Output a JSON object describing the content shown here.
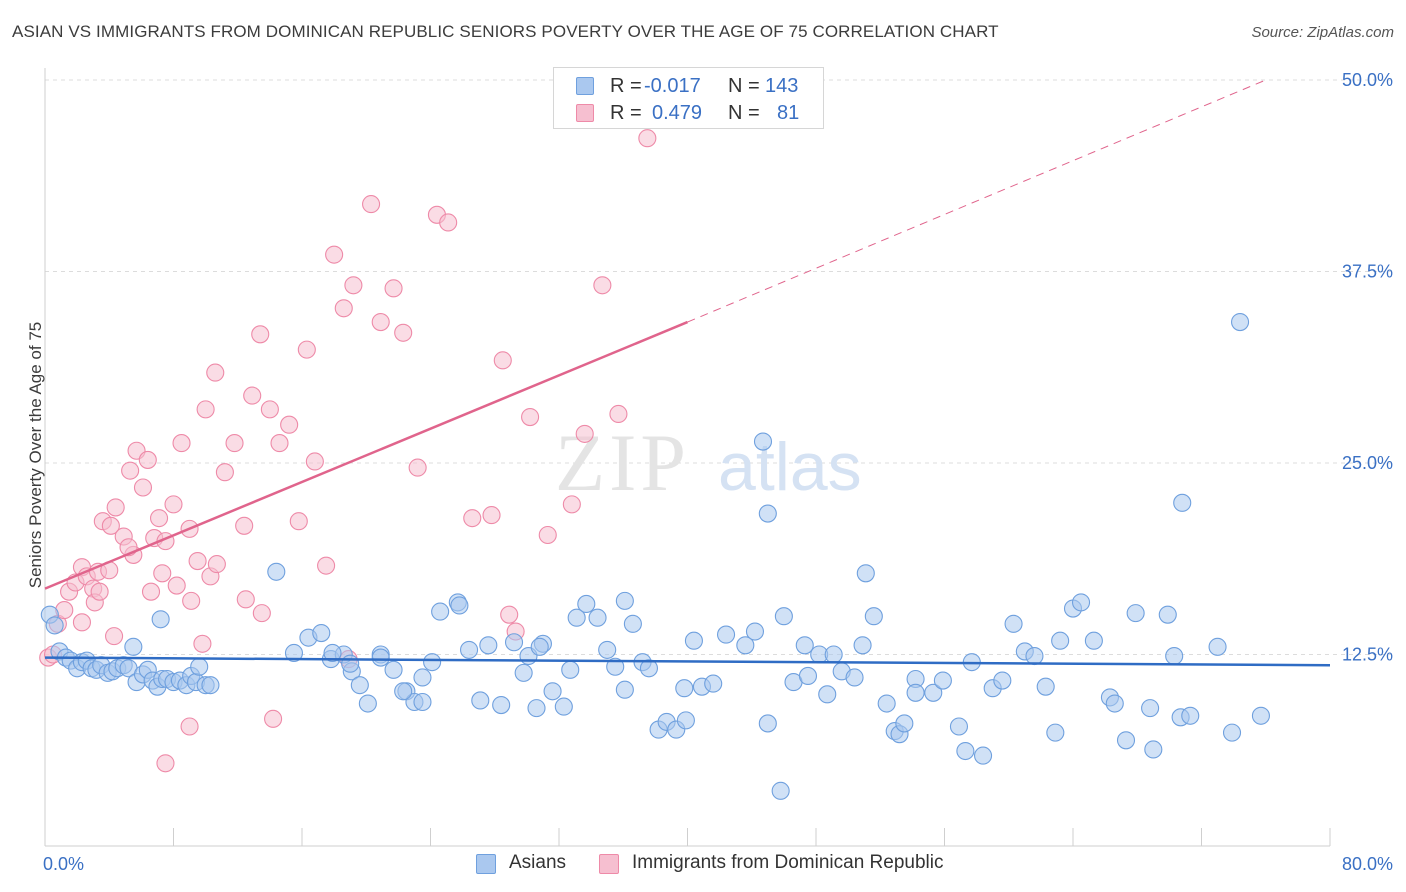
{
  "title": "ASIAN VS IMMIGRANTS FROM DOMINICAN REPUBLIC SENIORS POVERTY OVER THE AGE OF 75 CORRELATION CHART",
  "source": "Source: ZipAtlas.com",
  "watermark": {
    "part1": "ZIP",
    "part2": "atlas"
  },
  "legend_top": {
    "rows": [
      {
        "r_label": "R =",
        "r_value": "-0.017",
        "n_label": "N =",
        "n_value": "143",
        "color": "#6fa0de"
      },
      {
        "r_label": "R =",
        "r_value": "0.479",
        "n_label": "N =",
        "n_value": "81",
        "color": "#ee8aa8"
      }
    ]
  },
  "legend_bottom": [
    {
      "label": "Asians",
      "color": "#6fa0de"
    },
    {
      "label": "Immigrants from Dominican Republic",
      "color": "#ee8aa8"
    }
  ],
  "colors": {
    "blue_fill": "#aac8ef",
    "blue_stroke": "#6fa0de",
    "blue_line": "#2f6cc4",
    "pink_fill": "#f6bfd0",
    "pink_stroke": "#ee8aa8",
    "pink_line": "#e0648c",
    "tick_label": "#3a70c4",
    "grid": "#dcdcdc"
  },
  "chart_data": {
    "type": "scatter",
    "title": "ASIAN VS IMMIGRANTS FROM DOMINICAN REPUBLIC SENIORS POVERTY OVER THE AGE OF 75 CORRELATION CHART",
    "xlabel": "",
    "ylabel": "Seniors Poverty Over the Age of 75",
    "xlim": [
      0,
      80
    ],
    "ylim": [
      0,
      50
    ],
    "x_tick_labels": [
      "0.0%",
      "80.0%"
    ],
    "y_ticks": [
      12.5,
      25.0,
      37.5,
      50.0
    ],
    "y_tick_labels": [
      "12.5%",
      "25.0%",
      "37.5%",
      "50.0%"
    ],
    "grid": true,
    "legend_position": "top-center",
    "series": [
      {
        "name": "Asians",
        "r": -0.017,
        "n": 143,
        "trend": {
          "x": [
            0,
            80
          ],
          "y": [
            12.3,
            11.8
          ]
        },
        "points": [
          [
            0.3,
            15.1
          ],
          [
            0.6,
            14.4
          ],
          [
            0.9,
            12.7
          ],
          [
            1.3,
            12.3
          ],
          [
            1.6,
            12.1
          ],
          [
            2.0,
            11.6
          ],
          [
            2.3,
            12.0
          ],
          [
            2.6,
            12.1
          ],
          [
            2.9,
            11.6
          ],
          [
            3.2,
            11.5
          ],
          [
            3.5,
            11.8
          ],
          [
            3.9,
            11.3
          ],
          [
            4.2,
            11.4
          ],
          [
            4.5,
            11.6
          ],
          [
            4.9,
            11.8
          ],
          [
            5.2,
            11.6
          ],
          [
            5.5,
            13.0
          ],
          [
            5.7,
            10.7
          ],
          [
            6.1,
            11.2
          ],
          [
            6.4,
            11.5
          ],
          [
            6.7,
            10.8
          ],
          [
            7.0,
            10.4
          ],
          [
            7.3,
            10.9
          ],
          [
            7.6,
            10.9
          ],
          [
            8.0,
            10.7
          ],
          [
            8.4,
            10.8
          ],
          [
            8.8,
            10.5
          ],
          [
            9.1,
            11.1
          ],
          [
            9.4,
            10.7
          ],
          [
            9.6,
            11.7
          ],
          [
            10.0,
            10.5
          ],
          [
            10.3,
            10.5
          ],
          [
            7.2,
            14.8
          ],
          [
            14.4,
            17.9
          ],
          [
            15.5,
            12.6
          ],
          [
            16.4,
            13.6
          ],
          [
            17.2,
            13.9
          ],
          [
            17.8,
            12.2
          ],
          [
            18.6,
            12.5
          ],
          [
            19.1,
            11.4
          ],
          [
            19.6,
            10.5
          ],
          [
            20.1,
            9.3
          ],
          [
            20.9,
            12.5
          ],
          [
            21.7,
            11.5
          ],
          [
            22.5,
            10.1
          ],
          [
            23.0,
            9.4
          ],
          [
            23.5,
            9.4
          ],
          [
            24.1,
            12.0
          ],
          [
            24.6,
            15.3
          ],
          [
            25.7,
            15.9
          ],
          [
            26.4,
            12.8
          ],
          [
            27.1,
            9.5
          ],
          [
            27.6,
            13.1
          ],
          [
            28.4,
            9.2
          ],
          [
            29.2,
            13.3
          ],
          [
            29.8,
            11.3
          ],
          [
            30.1,
            12.4
          ],
          [
            30.6,
            9.0
          ],
          [
            31.0,
            13.2
          ],
          [
            31.6,
            10.1
          ],
          [
            32.3,
            9.1
          ],
          [
            32.7,
            11.5
          ],
          [
            33.1,
            14.9
          ],
          [
            33.7,
            15.8
          ],
          [
            34.4,
            14.9
          ],
          [
            35.0,
            12.8
          ],
          [
            35.5,
            11.7
          ],
          [
            36.1,
            10.2
          ],
          [
            36.6,
            14.5
          ],
          [
            37.2,
            12.0
          ],
          [
            37.6,
            11.6
          ],
          [
            38.2,
            7.6
          ],
          [
            38.7,
            8.1
          ],
          [
            39.3,
            7.6
          ],
          [
            39.8,
            10.3
          ],
          [
            40.4,
            13.4
          ],
          [
            40.9,
            10.4
          ],
          [
            41.6,
            10.6
          ],
          [
            42.4,
            13.8
          ],
          [
            43.6,
            13.1
          ],
          [
            44.2,
            14.0
          ],
          [
            45.0,
            8.0
          ],
          [
            45.8,
            3.6
          ],
          [
            46.0,
            15.0
          ],
          [
            46.6,
            10.7
          ],
          [
            47.3,
            13.1
          ],
          [
            48.2,
            12.5
          ],
          [
            49.1,
            12.5
          ],
          [
            49.6,
            11.4
          ],
          [
            50.4,
            11.0
          ],
          [
            51.6,
            15.0
          ],
          [
            52.4,
            9.3
          ],
          [
            52.9,
            7.5
          ],
          [
            53.2,
            7.3
          ],
          [
            54.2,
            10.9
          ],
          [
            55.3,
            10.0
          ],
          [
            55.9,
            10.8
          ],
          [
            56.9,
            7.8
          ],
          [
            57.7,
            12.0
          ],
          [
            57.3,
            6.2
          ],
          [
            58.4,
            5.9
          ],
          [
            59.0,
            10.3
          ],
          [
            59.6,
            10.8
          ],
          [
            60.3,
            14.5
          ],
          [
            61.0,
            12.7
          ],
          [
            61.6,
            12.4
          ],
          [
            62.3,
            10.4
          ],
          [
            62.9,
            7.4
          ],
          [
            63.2,
            13.4
          ],
          [
            64.0,
            15.5
          ],
          [
            64.5,
            15.9
          ],
          [
            65.3,
            13.4
          ],
          [
            66.3,
            9.7
          ],
          [
            66.6,
            9.3
          ],
          [
            67.3,
            6.9
          ],
          [
            67.9,
            15.2
          ],
          [
            68.8,
            9.0
          ],
          [
            69.0,
            6.3
          ],
          [
            69.9,
            15.1
          ],
          [
            70.3,
            12.4
          ],
          [
            70.7,
            8.4
          ],
          [
            71.3,
            8.5
          ],
          [
            73.9,
            7.4
          ],
          [
            75.7,
            8.5
          ],
          [
            73.0,
            13.0
          ],
          [
            70.8,
            22.4
          ],
          [
            74.4,
            34.2
          ],
          [
            44.7,
            26.4
          ],
          [
            45.0,
            21.7
          ],
          [
            50.9,
            13.1
          ],
          [
            51.1,
            17.8
          ],
          [
            53.5,
            8.0
          ],
          [
            54.2,
            10.0
          ],
          [
            47.5,
            11.1
          ],
          [
            48.7,
            9.9
          ],
          [
            39.9,
            8.2
          ],
          [
            36.1,
            16.0
          ],
          [
            30.8,
            13.0
          ],
          [
            25.8,
            15.7
          ],
          [
            23.5,
            11.0
          ],
          [
            22.3,
            10.1
          ],
          [
            20.9,
            12.3
          ],
          [
            19.0,
            11.9
          ],
          [
            17.9,
            12.6
          ]
        ]
      },
      {
        "name": "Immigrants from Dominican Republic",
        "r": 0.479,
        "n": 81,
        "trend": {
          "x": [
            0,
            40
          ],
          "y": [
            16.8,
            34.2
          ]
        },
        "trend_extension": {
          "x": [
            40,
            76
          ],
          "y": [
            34.2,
            50.0
          ]
        },
        "points": [
          [
            0.2,
            12.3
          ],
          [
            0.5,
            12.5
          ],
          [
            0.8,
            14.5
          ],
          [
            1.2,
            15.4
          ],
          [
            1.5,
            16.6
          ],
          [
            1.9,
            17.2
          ],
          [
            2.3,
            18.2
          ],
          [
            2.6,
            17.6
          ],
          [
            3.0,
            16.8
          ],
          [
            3.3,
            17.9
          ],
          [
            3.6,
            21.2
          ],
          [
            4.1,
            20.9
          ],
          [
            4.4,
            22.1
          ],
          [
            4.9,
            20.2
          ],
          [
            5.3,
            24.5
          ],
          [
            5.7,
            25.8
          ],
          [
            6.1,
            23.4
          ],
          [
            6.4,
            25.2
          ],
          [
            6.8,
            20.1
          ],
          [
            7.1,
            21.4
          ],
          [
            7.5,
            19.9
          ],
          [
            8.0,
            22.3
          ],
          [
            8.5,
            26.3
          ],
          [
            9.0,
            20.7
          ],
          [
            9.5,
            18.6
          ],
          [
            10.0,
            28.5
          ],
          [
            10.6,
            30.9
          ],
          [
            11.2,
            24.4
          ],
          [
            11.8,
            26.3
          ],
          [
            12.4,
            20.9
          ],
          [
            12.9,
            29.4
          ],
          [
            13.4,
            33.4
          ],
          [
            14.0,
            28.5
          ],
          [
            14.6,
            26.3
          ],
          [
            15.2,
            27.5
          ],
          [
            15.8,
            21.2
          ],
          [
            16.3,
            32.4
          ],
          [
            16.8,
            25.1
          ],
          [
            17.5,
            18.3
          ],
          [
            18.0,
            38.6
          ],
          [
            18.6,
            35.1
          ],
          [
            19.2,
            36.6
          ],
          [
            20.3,
            41.9
          ],
          [
            20.9,
            34.2
          ],
          [
            21.7,
            36.4
          ],
          [
            22.3,
            33.5
          ],
          [
            23.2,
            24.7
          ],
          [
            24.4,
            41.2
          ],
          [
            25.1,
            40.7
          ],
          [
            26.6,
            21.4
          ],
          [
            27.8,
            21.6
          ],
          [
            28.5,
            31.7
          ],
          [
            28.9,
            15.1
          ],
          [
            29.3,
            14.0
          ],
          [
            30.2,
            28.0
          ],
          [
            31.3,
            20.3
          ],
          [
            32.8,
            22.3
          ],
          [
            33.6,
            26.9
          ],
          [
            34.7,
            36.6
          ],
          [
            35.7,
            28.2
          ],
          [
            37.5,
            46.2
          ],
          [
            2.3,
            14.6
          ],
          [
            3.1,
            15.9
          ],
          [
            4.3,
            13.7
          ],
          [
            5.5,
            19.0
          ],
          [
            6.6,
            16.6
          ],
          [
            7.3,
            17.8
          ],
          [
            8.2,
            17.0
          ],
          [
            9.1,
            16.0
          ],
          [
            9.8,
            13.2
          ],
          [
            10.3,
            17.6
          ],
          [
            10.7,
            18.4
          ],
          [
            12.5,
            16.1
          ],
          [
            13.5,
            15.2
          ],
          [
            14.2,
            8.3
          ],
          [
            9.0,
            7.8
          ],
          [
            7.5,
            5.4
          ],
          [
            5.2,
            19.5
          ],
          [
            4.0,
            18.0
          ],
          [
            3.4,
            16.6
          ],
          [
            18.9,
            12.2
          ]
        ]
      }
    ]
  }
}
